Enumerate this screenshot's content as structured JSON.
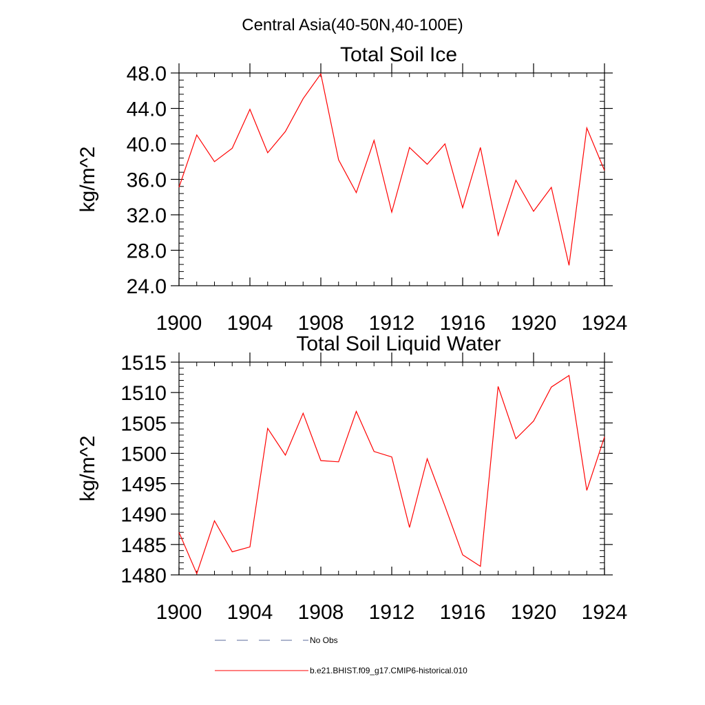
{
  "figure": {
    "suptitle": "Central Asia(40-50N,40-100E)"
  },
  "chart_data": [
    {
      "type": "line",
      "title": "Total Soil Ice",
      "xlabel": "",
      "ylabel": "kg/m^2",
      "xlim": [
        1900,
        1924
      ],
      "ylim": [
        24,
        48
      ],
      "xticks": [
        1900,
        1904,
        1908,
        1912,
        1916,
        1920,
        1924
      ],
      "xtick_labels": [
        "1900",
        "1904",
        "1908",
        "1912",
        "1916",
        "1920",
        "1924"
      ],
      "yticks": [
        24,
        28,
        32,
        36,
        40,
        44,
        48
      ],
      "ytick_labels": [
        "24.0",
        "28.0",
        "32.0",
        "36.0",
        "40.0",
        "44.0",
        "48.0"
      ],
      "x": [
        1900,
        1901,
        1902,
        1903,
        1904,
        1905,
        1906,
        1907,
        1908,
        1909,
        1910,
        1911,
        1912,
        1913,
        1914,
        1915,
        1916,
        1917,
        1918,
        1919,
        1920,
        1921,
        1922,
        1923,
        1924
      ],
      "series": [
        {
          "name": "b.e21.BHIST.f09_g17.CMIP6-historical.010",
          "color": "#ff0000",
          "values": [
            35.1,
            41.0,
            38.0,
            39.5,
            43.9,
            39.0,
            41.4,
            45.1,
            47.9,
            38.2,
            34.5,
            40.4,
            32.3,
            39.6,
            37.7,
            40.0,
            32.8,
            39.6,
            29.7,
            35.9,
            32.4,
            35.1,
            26.3,
            41.8,
            37.0
          ]
        }
      ]
    },
    {
      "type": "line",
      "title": "Total Soil Liquid Water",
      "xlabel": "",
      "ylabel": "kg/m^2",
      "xlim": [
        1900,
        1924
      ],
      "ylim": [
        1480,
        1515
      ],
      "xticks": [
        1900,
        1904,
        1908,
        1912,
        1916,
        1920,
        1924
      ],
      "xtick_labels": [
        "1900",
        "1904",
        "1908",
        "1912",
        "1916",
        "1920",
        "1924"
      ],
      "yticks": [
        1480,
        1485,
        1490,
        1495,
        1500,
        1505,
        1510,
        1515
      ],
      "ytick_labels": [
        "1480",
        "1485",
        "1490",
        "1495",
        "1500",
        "1505",
        "1510",
        "1515"
      ],
      "x": [
        1900,
        1901,
        1902,
        1903,
        1904,
        1905,
        1906,
        1907,
        1908,
        1909,
        1910,
        1911,
        1912,
        1913,
        1914,
        1915,
        1916,
        1917,
        1918,
        1919,
        1920,
        1921,
        1922,
        1923,
        1924
      ],
      "series": [
        {
          "name": "b.e21.BHIST.f09_g17.CMIP6-historical.010",
          "color": "#ff0000",
          "values": [
            1487.0,
            1480.2,
            1488.9,
            1483.8,
            1484.6,
            1504.1,
            1499.7,
            1506.6,
            1498.8,
            1498.6,
            1506.9,
            1500.3,
            1499.4,
            1487.8,
            1499.1,
            1491.3,
            1483.3,
            1481.4,
            1511.0,
            1502.4,
            1505.3,
            1510.9,
            1512.8,
            1493.9,
            1502.7
          ]
        }
      ]
    }
  ],
  "legend": {
    "items": [
      {
        "label": "No Obs",
        "style": "dashed",
        "color": "#5a6a9a"
      },
      {
        "label": "b.e21.BHIST.f09_g17.CMIP6-historical.010",
        "style": "solid",
        "color": "#ff0000"
      }
    ]
  }
}
